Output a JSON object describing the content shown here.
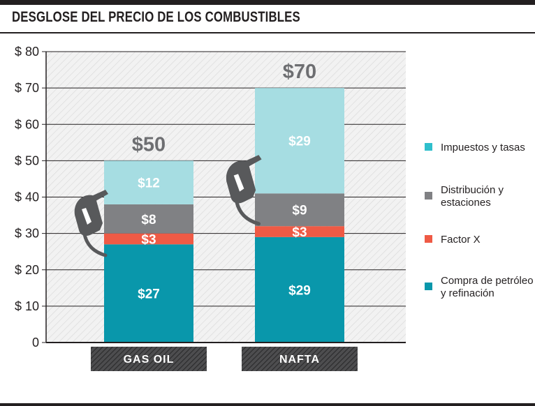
{
  "title": "DESGLOSE DEL PRECIO DE LOS COMBUSTIBLES",
  "chart_data": {
    "type": "bar",
    "stacked": true,
    "title": "DESGLOSE DEL PRECIO DE LOS COMBUSTIBLES",
    "categories": [
      "GAS OIL",
      "NAFTA"
    ],
    "series": [
      {
        "name": "Compra de petróleo y refinación",
        "legend_lines": [
          "Compra de petróleo",
          "y refinación"
        ],
        "values": [
          27,
          29
        ],
        "labels": [
          "$27",
          "$29"
        ],
        "color": "#0997ab"
      },
      {
        "name": "Factor X",
        "legend_lines": [
          "Factor X"
        ],
        "values": [
          3,
          3
        ],
        "labels": [
          "$3",
          "$3"
        ],
        "color": "#ef5a45"
      },
      {
        "name": "Distribución y estaciones",
        "legend_lines": [
          "Distribución y",
          "estaciones"
        ],
        "values": [
          8,
          9
        ],
        "labels": [
          "$8",
          "$9"
        ],
        "color": "#808184"
      },
      {
        "name": "Impuestos y tasas",
        "legend_lines": [
          "Impuestos y tasas"
        ],
        "values": [
          12,
          29
        ],
        "labels": [
          "$12",
          "$29"
        ],
        "color": "#a6dde2"
      }
    ],
    "legend_colors": [
      "#2fbfcc",
      "#808184",
      "#ef5a45",
      "#0997ab"
    ],
    "legend_order": [
      "Impuestos y tasas",
      "Distribución y estaciones",
      "Factor X",
      "Compra de petróleo y refinación"
    ],
    "totals": [
      50,
      70
    ],
    "total_labels": [
      "$50",
      "$70"
    ],
    "yticks": [
      0,
      10,
      20,
      30,
      40,
      50,
      60,
      70,
      80
    ],
    "ytick_labels": [
      "0",
      "$ 10",
      "$ 20",
      "$ 30",
      "$ 40",
      "$ 50",
      "$ 60",
      "$ 70",
      "$ 80"
    ],
    "ylim": [
      0,
      80
    ],
    "xlabel": "",
    "ylabel": "",
    "grid": true,
    "legend_position": "right"
  },
  "decor": {
    "icons": [
      "fuel-nozzle-icon",
      "fuel-nozzle-icon"
    ],
    "colors": {
      "text": "#231f20",
      "axis": "#231f20",
      "hatch": "#4d4d4f",
      "hatch_bg": "#f2f2f2",
      "nozzle": "#58595b"
    }
  }
}
